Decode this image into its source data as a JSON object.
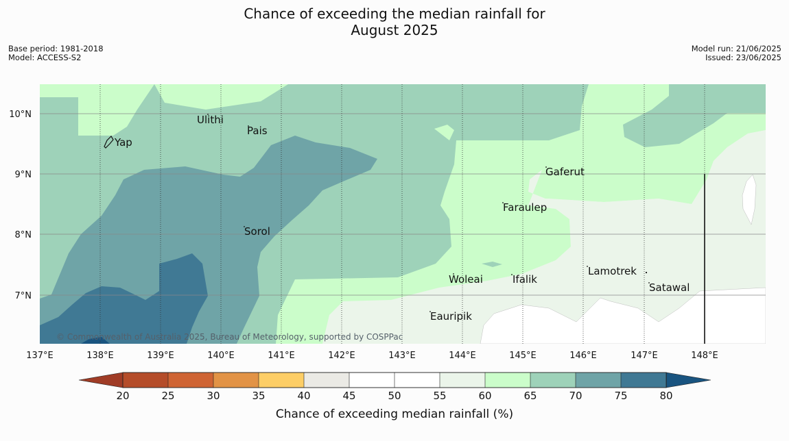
{
  "title": {
    "line1": "Chance of exceeding the median rainfall for",
    "line2": "August 2025"
  },
  "meta": {
    "base_period": "Base period: 1981-2018",
    "model": "Model: ACCESS-S2",
    "model_run": "Model run: 21/06/2025",
    "issued": "Issued: 23/06/2025"
  },
  "map": {
    "lon_labels": [
      "137°E",
      "138°E",
      "139°E",
      "140°E",
      "141°E",
      "142°E",
      "143°E",
      "144°E",
      "145°E",
      "146°E",
      "147°E",
      "148°E"
    ],
    "lat_labels": [
      "10°N",
      "9°N",
      "8°N",
      "7°N"
    ],
    "places": [
      "Ulithi",
      "Pais",
      "Yap",
      "Gaferut",
      "Faraulep",
      "Sorol",
      "Lamotrek",
      "Woleai",
      "Ifalik",
      "Satawal",
      "Eauripik"
    ],
    "credit": "© Commonwealth of Australia 2025, Bureau of Meteorology, supported by COSPPac"
  },
  "colorbar": {
    "title": "Chance of exceeding median rainfall (%)",
    "tick_labels": [
      "20",
      "25",
      "30",
      "35",
      "40",
      "45",
      "50",
      "55",
      "60",
      "65",
      "70",
      "75",
      "80"
    ],
    "bins": [
      "#b54d2a",
      "#cf6434",
      "#e29346",
      "#fdce66",
      "#ebeae5",
      "#ffffff",
      "#ffffff",
      "#ebf5ea",
      "#cbfdca",
      "#9ed2b9",
      "#6fa4a7",
      "#407994"
    ],
    "under_color": "#a03c26",
    "over_color": "#195480"
  }
}
